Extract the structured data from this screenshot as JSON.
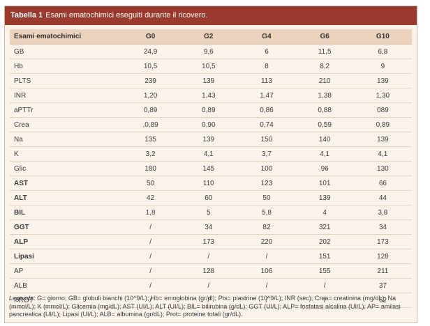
{
  "title": {
    "label": "Tabella 1",
    "text": "Esami ematochimici eseguiti durante il ricovero."
  },
  "table": {
    "headers": [
      "Esami ematochimici",
      "G0",
      "G2",
      "G4",
      "G6",
      "G10"
    ],
    "rows": [
      {
        "name": "GB",
        "bold": false,
        "values": [
          "24,9",
          "9,6",
          "6",
          "11,5",
          "6,8"
        ]
      },
      {
        "name": "Hb",
        "bold": false,
        "values": [
          "10,5",
          "10,5",
          "8",
          "8,2",
          "9"
        ]
      },
      {
        "name": "PLTS",
        "bold": false,
        "values": [
          "239",
          "139",
          "113",
          "210",
          "139"
        ]
      },
      {
        "name": "INR",
        "bold": false,
        "values": [
          "1,20",
          "1,43",
          "1,47",
          "1,38",
          "1,30"
        ]
      },
      {
        "name": "aPTTr",
        "bold": false,
        "values": [
          "0,89",
          "0,89",
          "0,86",
          "0,88",
          "089"
        ]
      },
      {
        "name": "Crea",
        "bold": false,
        "values": [
          ",0,89",
          "0,90",
          "0,74",
          "0,59",
          "0,89"
        ]
      },
      {
        "name": "Na",
        "bold": false,
        "values": [
          "135",
          "139",
          "150",
          "140",
          "139"
        ]
      },
      {
        "name": "K",
        "bold": false,
        "values": [
          "3,2",
          "4,1",
          "3,7",
          "4,1",
          "4,1"
        ]
      },
      {
        "name": "Glic",
        "bold": false,
        "values": [
          "180",
          "145",
          "100",
          "96",
          "130"
        ]
      },
      {
        "name": "AST",
        "bold": true,
        "values": [
          "50",
          "110",
          "123",
          "101",
          "66"
        ]
      },
      {
        "name": "ALT",
        "bold": true,
        "values": [
          "42",
          "60",
          "50",
          "139",
          "44"
        ]
      },
      {
        "name": "BIL",
        "bold": true,
        "values": [
          "1,8",
          "5",
          "5,8",
          "4",
          "3,8"
        ]
      },
      {
        "name": "GGT",
        "bold": true,
        "values": [
          "/",
          "34",
          "82",
          "321",
          "34"
        ]
      },
      {
        "name": "ALP",
        "bold": true,
        "values": [
          "/",
          "173",
          "220",
          "202",
          "173"
        ]
      },
      {
        "name": "Lipasi",
        "bold": true,
        "values": [
          "/",
          "/",
          "/",
          "151",
          "128"
        ]
      },
      {
        "name": "AP",
        "bold": false,
        "values": [
          "/",
          "128",
          "106",
          "155",
          "211"
        ]
      },
      {
        "name": "ALB",
        "bold": false,
        "values": [
          "/",
          "/",
          "/",
          "/",
          "37"
        ]
      },
      {
        "name": "PROT",
        "bold": false,
        "values": [
          "/",
          "/",
          "/",
          "/",
          "62"
        ]
      }
    ]
  },
  "legend": {
    "label": "Legenda:",
    "text": "G= giorno; GB= globuli bianchi (10^9/L); Hb= emoglobina (gr/dl); Pts= piastrine (10^9/L); INR (sec); Crea= creatinina (mg/dL); Na (mmol/L); K (mmol/L); Glicemia (mg/dL); AST (UI/L); ALT (UI/L); BIL= bilirubina (g/dL); GGT (UI/L); ALP= fosfatasi alcalina (UI/L); AP= amilasi pancreatica (UI/L); Lipasi (UI/L); ALB= albumina (gr/dL); Prot= proteine totali (gr/dL)."
  },
  "colors": {
    "title_bar": "#9a3a2d",
    "header_row": "#ead2bc",
    "panel_bg": "#fbf3ea"
  }
}
